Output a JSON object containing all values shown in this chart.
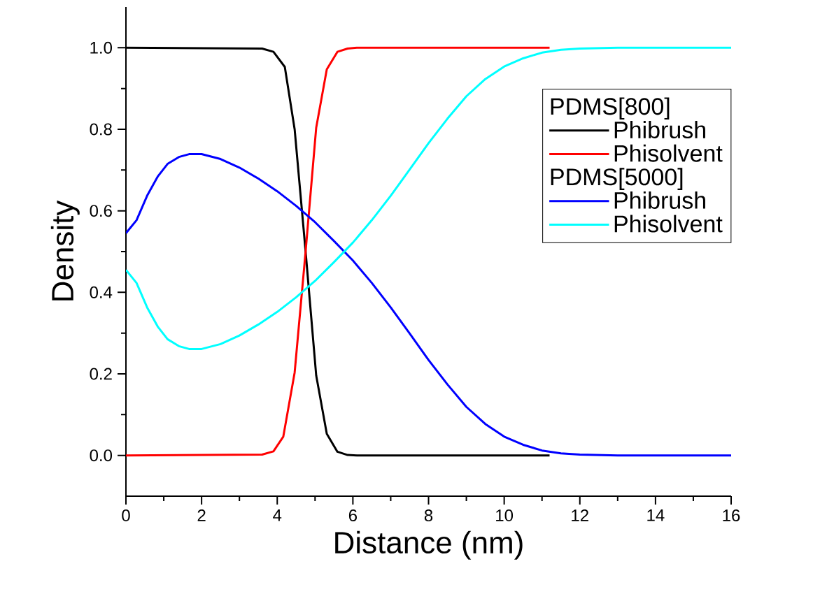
{
  "chart_data": {
    "type": "line",
    "xlabel": "Distance (nm)",
    "ylabel": "Density",
    "annotations": [
      "PDMS[800]",
      "PDMS[5000]"
    ],
    "xlim": [
      0,
      16
    ],
    "ylim": [
      -0.1,
      1.1
    ],
    "xticks": [
      0,
      2,
      4,
      6,
      8,
      10,
      12,
      14,
      16
    ],
    "yticks": [
      {
        "value": 0,
        "label": "0.0"
      },
      {
        "value": 0.2,
        "label": "0.2"
      },
      {
        "value": 0.4,
        "label": "0.4"
      },
      {
        "value": 0.6,
        "label": "0.6"
      },
      {
        "value": 0.8,
        "label": "0.8"
      },
      {
        "value": 1,
        "label": "1.0"
      }
    ],
    "grid": false,
    "legend": "right",
    "marker": "none",
    "line_style": "solid",
    "series": [
      {
        "name": "Phibrush",
        "color": "#000000",
        "x": [
          0,
          3.6,
          3.9,
          4.2,
          4.46,
          4.75,
          5.03,
          5.31,
          5.59,
          5.86,
          6.1,
          11.2
        ],
        "values": [
          1,
          0.998,
          0.99,
          0.953,
          0.8,
          0.5,
          0.196,
          0.053,
          0.009,
          0.001,
          0,
          0
        ]
      },
      {
        "name": "Phisolvent",
        "color": "#ff0000",
        "x": [
          0,
          3.6,
          3.9,
          4.16,
          4.46,
          4.75,
          5.03,
          5.31,
          5.59,
          5.86,
          6.1,
          11.2
        ],
        "values": [
          0,
          0.002,
          0.01,
          0.046,
          0.203,
          0.5,
          0.804,
          0.947,
          0.99,
          0.998,
          1,
          1
        ]
      },
      {
        "name": "Phibrush",
        "color": "#0000ff",
        "x": [
          0,
          0.28,
          0.56,
          0.84,
          1.1,
          1.4,
          1.67,
          2,
          2.5,
          3,
          3.5,
          4,
          4.5,
          5,
          5.5,
          6,
          6.5,
          7,
          7.5,
          8,
          8.5,
          9,
          9.5,
          10,
          10.5,
          11,
          11.5,
          12,
          13,
          14,
          16
        ],
        "values": [
          0.545,
          0.577,
          0.637,
          0.684,
          0.715,
          0.732,
          0.739,
          0.739,
          0.727,
          0.706,
          0.679,
          0.648,
          0.612,
          0.572,
          0.526,
          0.478,
          0.423,
          0.363,
          0.299,
          0.234,
          0.174,
          0.119,
          0.077,
          0.046,
          0.026,
          0.012,
          0.005,
          0.002,
          0,
          0,
          0
        ]
      },
      {
        "name": "Phisolvent",
        "color": "#00ffff",
        "x": [
          0,
          0.28,
          0.56,
          0.84,
          1.1,
          1.4,
          1.67,
          2,
          2.5,
          3,
          3.5,
          4,
          4.5,
          5,
          5.5,
          6,
          6.5,
          7,
          7.5,
          8,
          8.5,
          9,
          9.5,
          10,
          10.5,
          11,
          11.5,
          12,
          13,
          14,
          16
        ],
        "values": [
          0.455,
          0.423,
          0.363,
          0.316,
          0.285,
          0.268,
          0.261,
          0.261,
          0.273,
          0.294,
          0.321,
          0.352,
          0.388,
          0.428,
          0.474,
          0.522,
          0.577,
          0.637,
          0.701,
          0.766,
          0.826,
          0.881,
          0.923,
          0.954,
          0.974,
          0.988,
          0.995,
          0.998,
          1,
          1,
          1
        ]
      }
    ]
  }
}
